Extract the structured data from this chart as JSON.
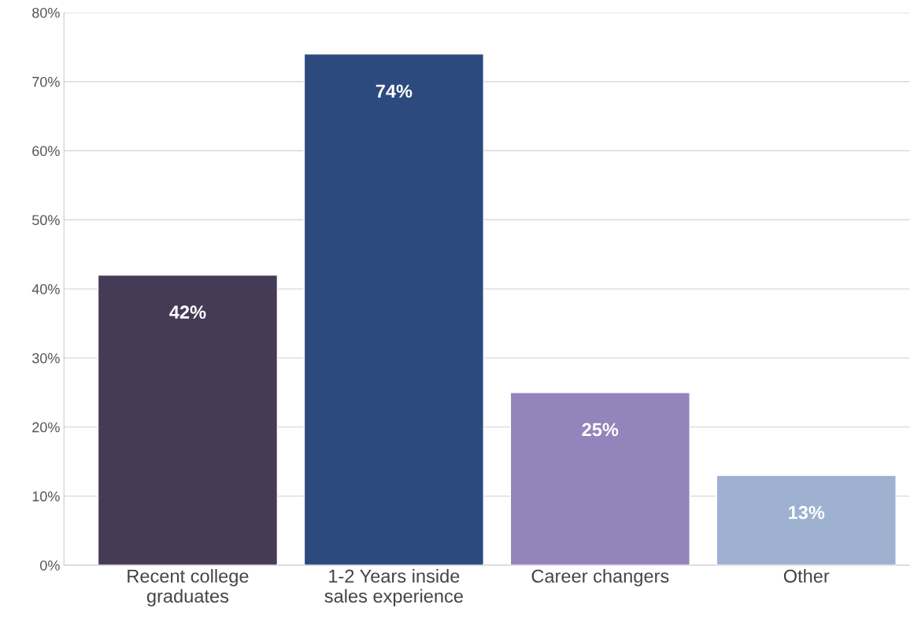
{
  "chart_data": {
    "type": "bar",
    "categories": [
      "Recent college\ngraduates",
      "1-2 Years inside\nsales experience",
      "Career changers",
      "Other"
    ],
    "values": [
      42,
      74,
      25,
      13
    ],
    "colors": [
      "#45365a",
      "#1f468a",
      "#8f7bc4",
      "#95afd9"
    ],
    "value_labels": [
      "42%",
      "74%",
      "25%",
      "13%"
    ],
    "ylim": [
      0,
      80
    ],
    "yticks": [
      {
        "value": 0,
        "label": "0%"
      },
      {
        "value": 10,
        "label": "10%"
      },
      {
        "value": 20,
        "label": "20%"
      },
      {
        "value": 30,
        "label": "30%"
      },
      {
        "value": 40,
        "label": "40%"
      },
      {
        "value": 50,
        "label": "50%"
      },
      {
        "value": 60,
        "label": "60%"
      },
      {
        "value": 70,
        "label": "70%"
      },
      {
        "value": 80,
        "label": "80%"
      }
    ],
    "grid": "y"
  }
}
